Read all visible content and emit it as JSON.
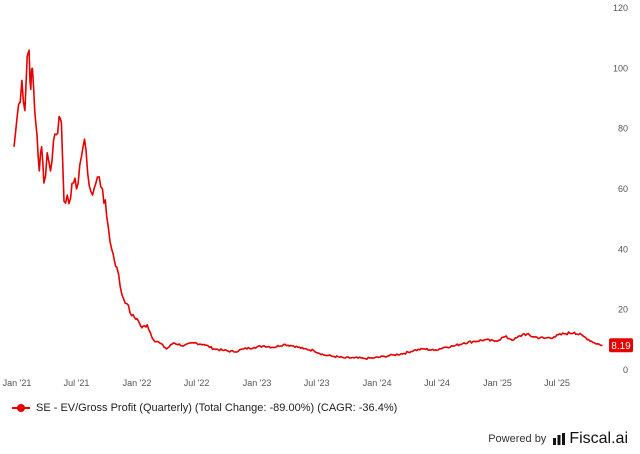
{
  "chart_data": {
    "type": "line",
    "title": "",
    "xlabel": "",
    "ylabel": "",
    "x_ticks": [
      "Jan '21",
      "Jul '21",
      "Jan '22",
      "Jul '22",
      "Jan '23",
      "Jul '23",
      "Jan '24",
      "Jul '24",
      "Jan '25",
      "Jul '25"
    ],
    "y_ticks": [
      0,
      20,
      40,
      60,
      80,
      100,
      120
    ],
    "ylim": [
      0,
      120
    ],
    "xlim": [
      "2021-01-01",
      "2025-11-30"
    ],
    "grid": false,
    "legend_position": "bottom-left",
    "series": [
      {
        "name": "SE - EV/Gross Profit (Quarterly) (Total Change: -89.00%) (CAGR: -36.4%)",
        "color": "#e60000",
        "last_value_label": "8.19",
        "points": [
          [
            "2021-01-01",
            74
          ],
          [
            "2021-01-15",
            88
          ],
          [
            "2021-01-25",
            96
          ],
          [
            "2021-02-03",
            86
          ],
          [
            "2021-02-10",
            104
          ],
          [
            "2021-02-16",
            106
          ],
          [
            "2021-02-21",
            93
          ],
          [
            "2021-02-26",
            100
          ],
          [
            "2021-03-05",
            86
          ],
          [
            "2021-03-12",
            78
          ],
          [
            "2021-03-19",
            66
          ],
          [
            "2021-03-26",
            74
          ],
          [
            "2021-04-02",
            62
          ],
          [
            "2021-04-12",
            72
          ],
          [
            "2021-04-22",
            66
          ],
          [
            "2021-05-01",
            76
          ],
          [
            "2021-05-10",
            78
          ],
          [
            "2021-05-18",
            84
          ],
          [
            "2021-05-25",
            82
          ],
          [
            "2021-06-02",
            56
          ],
          [
            "2021-06-12",
            58
          ],
          [
            "2021-06-22",
            57
          ],
          [
            "2021-07-01",
            62
          ],
          [
            "2021-07-10",
            60
          ],
          [
            "2021-07-20",
            68
          ],
          [
            "2021-07-30",
            74
          ],
          [
            "2021-08-08",
            73
          ],
          [
            "2021-08-18",
            61
          ],
          [
            "2021-08-28",
            58
          ],
          [
            "2021-09-07",
            62
          ],
          [
            "2021-09-17",
            64
          ],
          [
            "2021-09-27",
            60
          ],
          [
            "2021-10-10",
            51
          ],
          [
            "2021-10-25",
            40
          ],
          [
            "2021-11-10",
            34
          ],
          [
            "2021-11-25",
            25
          ],
          [
            "2021-12-10",
            22
          ],
          [
            "2021-12-25",
            18
          ],
          [
            "2022-01-10",
            17
          ],
          [
            "2022-01-25",
            14
          ],
          [
            "2022-02-10",
            15
          ],
          [
            "2022-03-01",
            10
          ],
          [
            "2022-03-20",
            9
          ],
          [
            "2022-04-10",
            7
          ],
          [
            "2022-05-01",
            9
          ],
          [
            "2022-06-01",
            8
          ],
          [
            "2022-07-01",
            9
          ],
          [
            "2022-08-01",
            8.5
          ],
          [
            "2022-09-01",
            7
          ],
          [
            "2022-10-01",
            6.5
          ],
          [
            "2022-11-01",
            6
          ],
          [
            "2022-12-01",
            7
          ],
          [
            "2023-01-01",
            7.5
          ],
          [
            "2023-02-01",
            8
          ],
          [
            "2023-03-01",
            7.5
          ],
          [
            "2023-04-01",
            8.5
          ],
          [
            "2023-05-01",
            8
          ],
          [
            "2023-06-01",
            7
          ],
          [
            "2023-07-01",
            6.5
          ],
          [
            "2023-08-01",
            5
          ],
          [
            "2023-09-01",
            4.5
          ],
          [
            "2023-10-01",
            4
          ],
          [
            "2023-11-01",
            4
          ],
          [
            "2023-12-01",
            3.8
          ],
          [
            "2024-01-01",
            4
          ],
          [
            "2024-02-01",
            4.5
          ],
          [
            "2024-03-01",
            5
          ],
          [
            "2024-04-01",
            5.5
          ],
          [
            "2024-05-01",
            6.5
          ],
          [
            "2024-06-01",
            7
          ],
          [
            "2024-07-01",
            6.5
          ],
          [
            "2024-08-01",
            7.5
          ],
          [
            "2024-09-01",
            8
          ],
          [
            "2024-10-01",
            9
          ],
          [
            "2024-11-01",
            9.5
          ],
          [
            "2024-12-01",
            10
          ],
          [
            "2025-01-01",
            9.5
          ],
          [
            "2025-02-01",
            11
          ],
          [
            "2025-03-01",
            10
          ],
          [
            "2025-04-01",
            12
          ],
          [
            "2025-05-01",
            11
          ],
          [
            "2025-06-01",
            10.5
          ],
          [
            "2025-07-01",
            11
          ],
          [
            "2025-08-01",
            12
          ],
          [
            "2025-09-01",
            12.5
          ],
          [
            "2025-10-01",
            11
          ],
          [
            "2025-11-01",
            9
          ],
          [
            "2025-11-25",
            8.19
          ]
        ]
      }
    ]
  },
  "branding": {
    "powered_by": "Powered by",
    "logo_text": "Fiscal.ai",
    "logo_icon": "fiscal-ai-bars-icon"
  }
}
